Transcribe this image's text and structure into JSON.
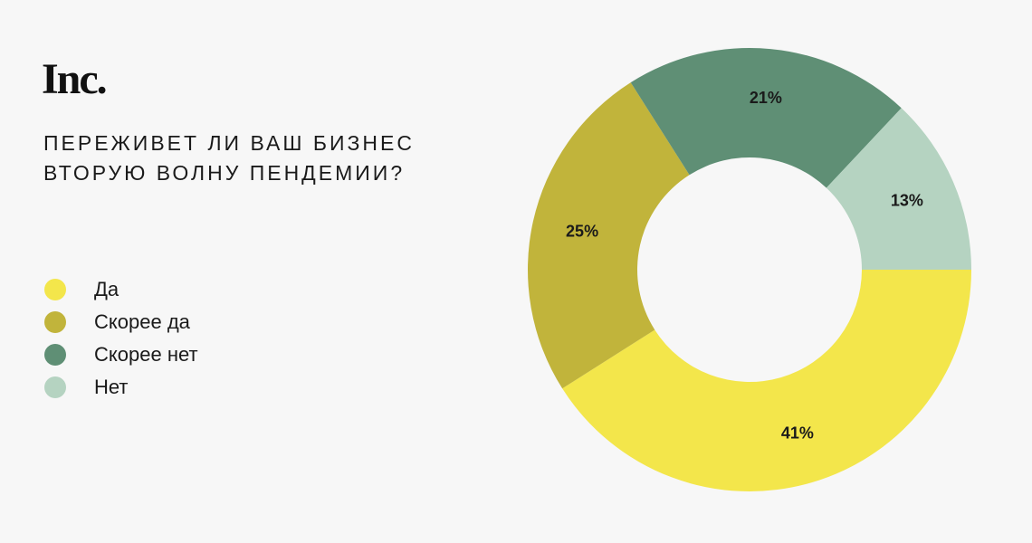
{
  "brand": "Inc.",
  "chart_data": {
    "type": "donut",
    "title": "ПЕРЕЖИВЕТ ЛИ ВАШ БИЗНЕС ВТОРУЮ ВОЛНУ ПЕНДЕМИИ?",
    "categories": [
      "Да",
      "Скорее да",
      "Скорее нет",
      "Нет"
    ],
    "values": [
      41,
      25,
      21,
      13
    ],
    "value_labels": [
      "41%",
      "25%",
      "21%",
      "13%"
    ],
    "colors": [
      "#f3e64b",
      "#c1b43b",
      "#5f8f75",
      "#b5d3c1"
    ],
    "legend": "left"
  }
}
